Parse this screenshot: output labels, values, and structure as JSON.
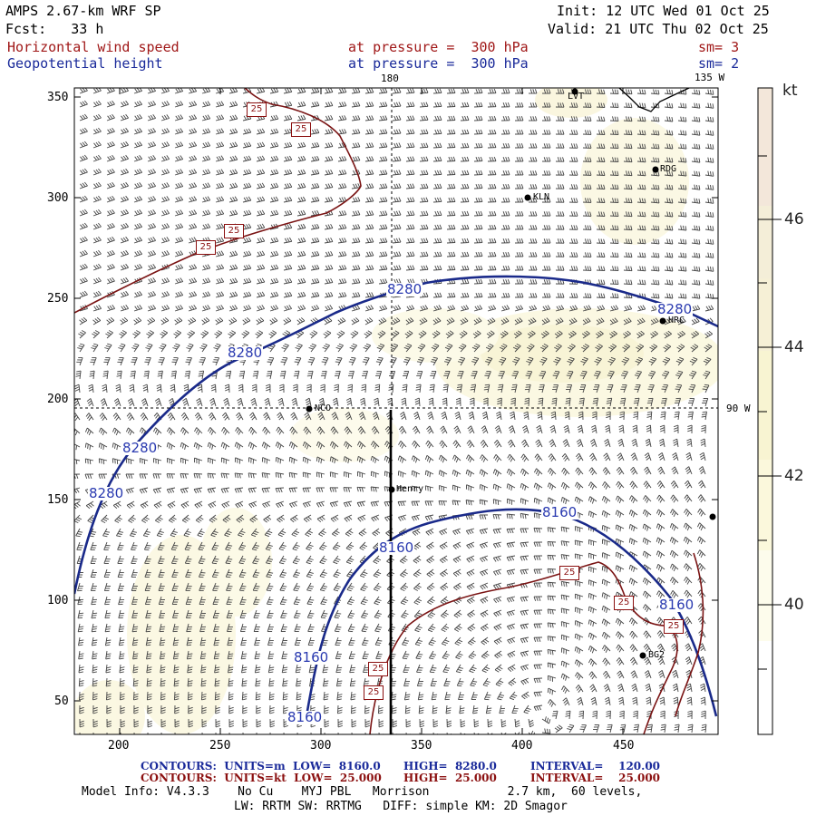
{
  "header": {
    "model": "AMPS 2.67-km WRF SP",
    "init": "Init: 12 UTC Wed 01 Oct 25",
    "fcst": "Fcst:   33 h",
    "valid": "Valid: 21 UTC Thu 02 Oct 25",
    "field1": "Horizontal wind speed",
    "field1_level": "at pressure =  300 hPa",
    "field1_sm": "sm= 3",
    "field2": "Geopotential height",
    "field2_level": "at pressure =  300 hPa",
    "field2_sm": "sm= 2"
  },
  "map": {
    "meridian_labels": {
      "top_180": "180",
      "top_135w": "135 W",
      "right_90w": "90 W"
    },
    "x_ticks": [
      "200",
      "250",
      "300",
      "350",
      "400",
      "450"
    ],
    "y_ticks": [
      "350",
      "300",
      "250",
      "200",
      "150",
      "100",
      "50"
    ],
    "stations": [
      "LVT",
      "RDG",
      "KLN",
      "HRC",
      "NCO",
      "Henry",
      "BG2"
    ],
    "height_contour_labels": [
      "8280",
      "8280",
      "8280",
      "8280",
      "8280",
      "8160",
      "8160",
      "8160",
      "8160",
      "8160"
    ],
    "speed_contour_labels": [
      "25",
      "25",
      "25",
      "25",
      "25",
      "25",
      "25",
      "25",
      "25"
    ]
  },
  "colorbar": {
    "unit": "kt",
    "labels": [
      "46",
      "44",
      "42",
      "40"
    ],
    "colors": [
      "#f3e7da",
      "#f4eed8",
      "#f6f1d4",
      "#f9f6d6",
      "#fbf9df",
      "#fdfcee",
      "#ffffff"
    ]
  },
  "footer": {
    "contours1_a": "CONTOURS:  UNITS=m  LOW=  8160.0",
    "contours1_b": "HIGH=  8280.0",
    "contours1_c": "INTERVAL=    120.00",
    "contours2_a": "CONTOURS:  UNITS=kt  LOW=  25.000",
    "contours2_b": "HIGH=  25.000",
    "contours2_c": "INTERVAL=    25.000",
    "model_info": "Model Info: V4.3.3    No Cu    MYJ PBL   Morrison           2.7 km,  60 levels,",
    "model_info2": "LW: RRTM SW: RRTMG   DIFF: simple KM: 2D Smagor"
  }
}
